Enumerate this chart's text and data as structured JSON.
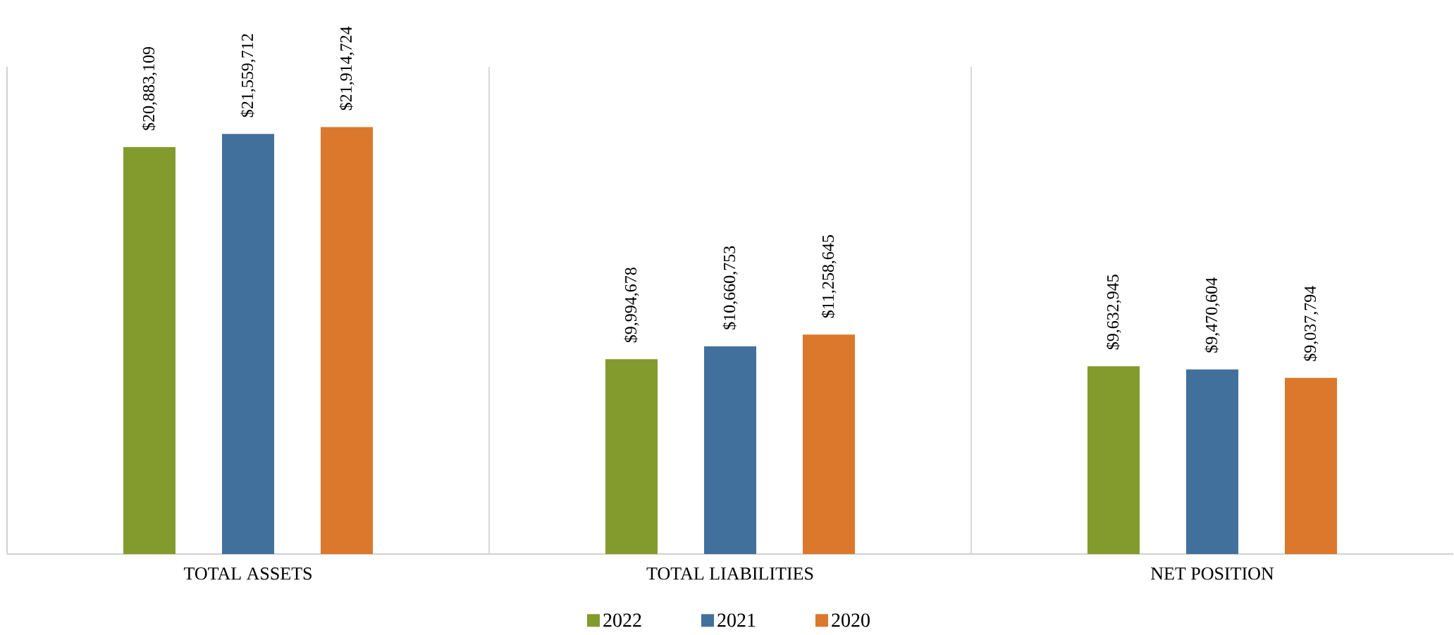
{
  "chart_data": {
    "type": "bar",
    "categories": [
      "TOTAL ASSETS",
      "TOTAL LIABILITIES",
      "NET POSITION"
    ],
    "series": [
      {
        "name": "2022",
        "color": "#839a2d",
        "values": [
          20883109,
          9994678,
          9632945
        ],
        "value_labels": [
          "$20,883,109",
          "$9,994,678",
          "$9,632,945"
        ]
      },
      {
        "name": "2021",
        "color": "#41709d",
        "values": [
          21559712,
          10660753,
          9470604
        ],
        "value_labels": [
          "$21,559,712",
          "$10,660,753",
          "$9,470,604"
        ]
      },
      {
        "name": "2020",
        "color": "#db782b",
        "values": [
          21914724,
          11258645,
          9037794
        ],
        "value_labels": [
          "$21,914,724",
          "$11,258,645",
          "$9,037,794"
        ]
      }
    ],
    "ylim": [
      0,
      25000000
    ],
    "tick_labels": "x",
    "grid": "x",
    "legend": "bottom"
  }
}
